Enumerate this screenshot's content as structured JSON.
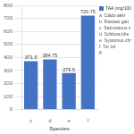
{
  "chart_data": {
    "type": "bar",
    "xlabel": "Species",
    "categories": [
      "c",
      "d",
      "e",
      "f"
    ],
    "series": [
      {
        "name": "TAA (mg/100",
        "color": "#4472C4",
        "values": [
          371.5,
          384.75,
          279.5,
          720.75
        ]
      }
    ],
    "ylim": [
      0,
      800
    ],
    "yticks": [
      0,
      100,
      200,
      300,
      400,
      500,
      600,
      700,
      800
    ],
    "grid": true,
    "data_labels": true,
    "legend": "right",
    "annotations": [
      "a. Caldo akkr",
      "b. Raswas gatt",
      "c. Salmostous s",
      "d. Schitura khe",
      "e. Systomus chr",
      "f. Tor tor",
      "8"
    ]
  }
}
